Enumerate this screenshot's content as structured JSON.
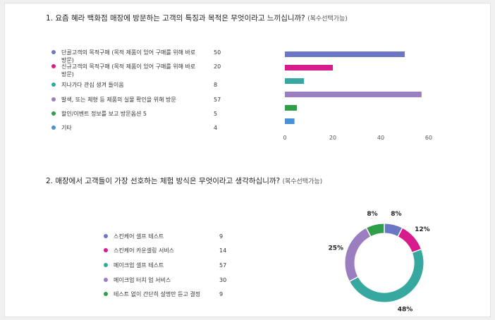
{
  "q1": {
    "title": "1. 요즘 혜라 백화점 매장에 방문하는 고객의 특징과 목적은 무엇이라고 느끼십니까?",
    "note": "(복수선택가능)"
  },
  "q2": {
    "title": "2. 매장에서 고객들이 가장 선호하는 체험 방식은 무엇이라고 생각하십니까?",
    "note": "(복수선택가능)"
  },
  "chart_data": [
    {
      "type": "bar",
      "orientation": "horizontal",
      "categories": [
        "단골고객의 목적구매 (목적 제품이 있어 구매를 위해 바로 방문)",
        "신규고객의 목적구매 (목적 제품이 있어 구매를 위해 바로 방문)",
        "지나가다 관심 생겨 들이옴",
        "발색, 또는 체형 등 제품의 실물 확인을 위해 방문",
        "할인/이벤트 정보를 보고 방문옵션 5",
        "기타"
      ],
      "values": [
        50,
        20,
        8,
        57,
        5,
        4
      ],
      "colors": [
        "#6b77c4",
        "#d81b8c",
        "#36a8a0",
        "#9b7ec0",
        "#2e9e48",
        "#4a90d9"
      ],
      "xlim": [
        0,
        60
      ],
      "xticks": [
        0,
        20,
        40,
        60
      ],
      "grid": false,
      "legend": "left"
    },
    {
      "type": "pie",
      "donut": true,
      "categories": [
        "스킨케어 셀프 테스트",
        "스킨케어 카운셀링 서비스",
        "메이크업 셀프 테스트",
        "메이크업 터치 업 서비스",
        "테스트 없이 간단히 설명만 듣고 결정"
      ],
      "values": [
        9,
        14,
        57,
        30,
        9
      ],
      "percent_labels": [
        "8%",
        "12%",
        "48%",
        "25%",
        "8%"
      ],
      "colors": [
        "#6b77c4",
        "#d81b8c",
        "#36a8a0",
        "#9b7ec0",
        "#2e9e48"
      ],
      "legend": "left"
    }
  ]
}
